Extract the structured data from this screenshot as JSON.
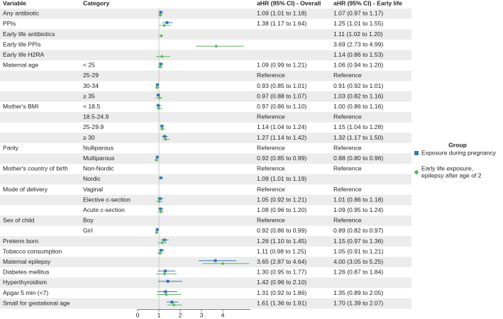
{
  "chart_data": {
    "type": "forest",
    "headers": {
      "variable": "Variable",
      "category": "Category",
      "overall": "aHR (95% CI) - Overall",
      "early": "aHR (95% CI) - Early life"
    },
    "xlim": [
      0,
      5.3
    ],
    "xticks": [
      0,
      1,
      2,
      3,
      4
    ],
    "reference_line": 1,
    "legend": {
      "title": "Group",
      "entries": [
        {
          "lines": [
            "Exposure during pregnancy"
          ],
          "color": "#3b78b4"
        },
        {
          "lines": [
            "Early life exposure,",
            "epilepsy after age of 2"
          ],
          "color": "#5cb85c"
        }
      ]
    },
    "rows": [
      {
        "variable": "Any antibiotic",
        "category": null,
        "overall": {
          "label": "1.09 (1.01 to 1.18)",
          "hr": 1.09,
          "lo": 1.01,
          "hi": 1.18
        },
        "early": {
          "label": "1.07 (0.97 to 1.17)",
          "hr": 1.07,
          "lo": 0.97,
          "hi": 1.17
        }
      },
      {
        "variable": "PPIs",
        "category": null,
        "overall": {
          "label": "1.38 (1.17 to 1.64)",
          "hr": 1.38,
          "lo": 1.17,
          "hi": 1.64
        },
        "early": {
          "label": "1.25 (1.01 to 1.55)",
          "hr": 1.25,
          "lo": 1.01,
          "hi": 1.55
        }
      },
      {
        "variable": "Early life antibiotics",
        "category": null,
        "overall": null,
        "early": {
          "label": "1.11 (1.02 to 1.20)",
          "hr": 1.11,
          "lo": 1.02,
          "hi": 1.2
        }
      },
      {
        "variable": "Early life PPIs",
        "category": null,
        "overall": null,
        "early": {
          "label": "3.69 (2.73 to 4.99)",
          "hr": 3.69,
          "lo": 2.73,
          "hi": 4.99
        }
      },
      {
        "variable": "Early life H2RA",
        "category": null,
        "overall": null,
        "early": {
          "label": "1.14 (0.86 to 1.53)",
          "hr": 1.14,
          "lo": 0.86,
          "hi": 1.53
        }
      },
      {
        "variable": "Maternal age",
        "category": "< 25",
        "overall": {
          "label": "1.09 (0.99 to 1.21)",
          "hr": 1.09,
          "lo": 0.99,
          "hi": 1.21
        },
        "early": {
          "label": "1.06 (0.94 to 1.20)",
          "hr": 1.06,
          "lo": 0.94,
          "hi": 1.2
        }
      },
      {
        "variable": null,
        "category": "25-29",
        "overall": {
          "label": "Reference"
        },
        "early": {
          "label": "Reference"
        }
      },
      {
        "variable": null,
        "category": "30-34",
        "overall": {
          "label": "0.93 (0.85 to 1.01)",
          "hr": 0.93,
          "lo": 0.85,
          "hi": 1.01
        },
        "early": {
          "label": "0.91 (0.92 to 1.01)",
          "hr": 0.91,
          "lo": 0.92,
          "hi": 1.01
        }
      },
      {
        "variable": null,
        "category": "≥ 35",
        "overall": {
          "label": "0.97 (0.88 to 1.07)",
          "hr": 0.97,
          "lo": 0.88,
          "hi": 1.07
        },
        "early": {
          "label": "1.03 (0.82 to 1.16)",
          "hr": 1.03,
          "lo": 0.82,
          "hi": 1.16
        }
      },
      {
        "variable": "Mother's BMI",
        "category": "< 18.5",
        "overall": {
          "label": "0.97 (0.86 to 1.10)",
          "hr": 0.97,
          "lo": 0.86,
          "hi": 1.1
        },
        "early": {
          "label": "1.00 (0.86 to 1.16)",
          "hr": 1,
          "lo": 0.86,
          "hi": 1.16
        }
      },
      {
        "variable": null,
        "category": "18.5-24.9",
        "overall": {
          "label": "Reference"
        },
        "early": {
          "label": "Reference"
        }
      },
      {
        "variable": null,
        "category": "25-29.9",
        "overall": {
          "label": "1.14 (1.04 to 1.24)",
          "hr": 1.14,
          "lo": 1.04,
          "hi": 1.24
        },
        "early": {
          "label": "1.15 (1.04 to 1.28)",
          "hr": 1.15,
          "lo": 1.04,
          "hi": 1.28
        }
      },
      {
        "variable": null,
        "category": "≥ 30",
        "overall": {
          "label": "1.27 (1.14 to 1.42)",
          "hr": 1.27,
          "lo": 1.14,
          "hi": 1.42
        },
        "early": {
          "label": "1.32 (1.17 to 1.50)",
          "hr": 1.32,
          "lo": 1.17,
          "hi": 1.5
        }
      },
      {
        "variable": "Parity",
        "category": "Nulliparous",
        "overall": {
          "label": "Reference"
        },
        "early": {
          "label": "Reference"
        }
      },
      {
        "variable": null,
        "category": "Multiparous",
        "overall": {
          "label": "0.92 (0.85 to 0.99)",
          "hr": 0.92,
          "lo": 0.85,
          "hi": 0.99
        },
        "early": {
          "label": "0.88 (0.80 to 0.96)",
          "hr": 0.88,
          "lo": 0.8,
          "hi": 0.96
        }
      },
      {
        "variable": "Mother's country of birth",
        "category": "Non-Nordic",
        "overall": {
          "label": "Reference"
        },
        "early": {
          "label": "Reference"
        }
      },
      {
        "variable": null,
        "category": "Nordic",
        "overall": {
          "label": "1.09 (1.01 to 1.19)",
          "hr": 1.09,
          "lo": 1.01,
          "hi": 1.19
        },
        "early": null
      },
      {
        "variable": "Mode of delivery",
        "category": "Vaginal",
        "overall": {
          "label": "Reference"
        },
        "early": {
          "label": "Reference"
        }
      },
      {
        "variable": null,
        "category": "Elective c-section",
        "overall": {
          "label": "1.05 (0.92 to 1.21)",
          "hr": 1.05,
          "lo": 0.92,
          "hi": 1.21
        },
        "early": {
          "label": "1.01 (0.86 to 1.18)",
          "hr": 1.01,
          "lo": 0.86,
          "hi": 1.18
        }
      },
      {
        "variable": null,
        "category": "Acute c-section",
        "overall": {
          "label": "1.08 (0.96 to 1.20)",
          "hr": 1.08,
          "lo": 0.96,
          "hi": 1.2
        },
        "early": {
          "label": "1.09 (0.95 to 1.24)",
          "hr": 1.09,
          "lo": 0.95,
          "hi": 1.24
        }
      },
      {
        "variable": "Sex of child",
        "category": "Boy",
        "overall": {
          "label": "Reference"
        },
        "early": {
          "label": "Reference"
        }
      },
      {
        "variable": null,
        "category": "Girl",
        "overall": {
          "label": "0.92 (0.86 to 0.99)",
          "hr": 0.92,
          "lo": 0.86,
          "hi": 0.99
        },
        "early": {
          "label": "0.89 (0.82 to 0.97)",
          "hr": 0.89,
          "lo": 0.82,
          "hi": 0.97
        }
      },
      {
        "variable": "Preterm born",
        "category": null,
        "overall": {
          "label": "1.26 (1.10 to 1.45)",
          "hr": 1.26,
          "lo": 1.1,
          "hi": 1.45
        },
        "early": {
          "label": "1.15 (0.97 to 1.36)",
          "hr": 1.15,
          "lo": 0.97,
          "hi": 1.36
        }
      },
      {
        "variable": "Tobacco consumption",
        "category": null,
        "overall": {
          "label": "1.11 (0.98 to 1.25)",
          "hr": 1.11,
          "lo": 0.98,
          "hi": 1.25
        },
        "early": {
          "label": "1.05 (0.91 to 1.21)",
          "hr": 1.05,
          "lo": 0.91,
          "hi": 1.21
        }
      },
      {
        "variable": "Maternal epilepsy",
        "category": null,
        "overall": {
          "label": "3.65 (2.87 to 4.64)",
          "hr": 3.65,
          "lo": 2.87,
          "hi": 4.64
        },
        "early": {
          "label": "4.00 (3.05 to 5.25)",
          "hr": 4,
          "lo": 3.05,
          "hi": 5.25
        }
      },
      {
        "variable": "Diabetes mellitus",
        "category": null,
        "overall": {
          "label": "1.30 (0.95 to 1.77)",
          "hr": 1.3,
          "lo": 0.95,
          "hi": 1.77
        },
        "early": {
          "label": "1.26 (0.87 to 1.84)",
          "hr": 1.26,
          "lo": 0.87,
          "hi": 1.84
        }
      },
      {
        "variable": "Hyperthyroidism",
        "category": null,
        "overall": {
          "label": "1.42 (0.96 to 2.10)",
          "hr": 1.42,
          "lo": 0.96,
          "hi": 2.1
        },
        "early": null
      },
      {
        "variable": "Apgar 5 min (<7)",
        "category": null,
        "overall": {
          "label": "1.31 (0.92 to 1.86)",
          "hr": 1.31,
          "lo": 0.92,
          "hi": 1.86
        },
        "early": {
          "label": "1.35 (0.89 to 2.05)",
          "hr": 1.35,
          "lo": 0.89,
          "hi": 2.05
        }
      },
      {
        "variable": "Small for gestational age",
        "category": null,
        "overall": {
          "label": "1.61 (1.36 to 1.91)",
          "hr": 1.61,
          "lo": 1.36,
          "hi": 1.91
        },
        "early": {
          "label": "1.70 (1.39 to 2.07)",
          "hr": 1.7,
          "lo": 1.39,
          "hi": 2.07
        }
      }
    ]
  }
}
